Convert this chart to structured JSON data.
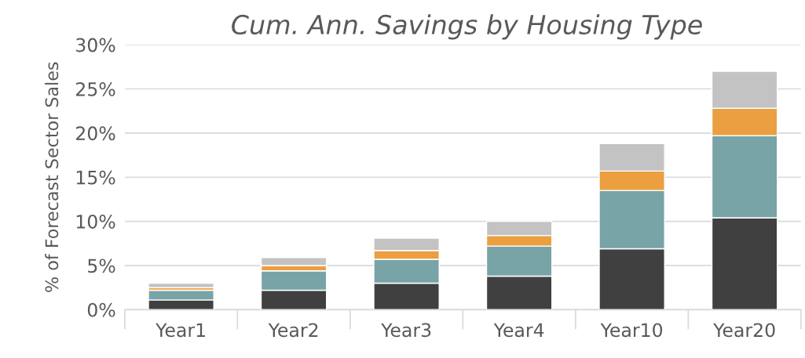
{
  "chart_data": {
    "type": "bar",
    "title": "Cum. Ann. Savings by Housing Type",
    "ylabel": "% of Forecast Sector Sales",
    "categories": [
      "Year1",
      "Year2",
      "Year3",
      "Year4",
      "Year10",
      "Year20"
    ],
    "stacked": true,
    "series": [
      {
        "color": "#404040",
        "values": [
          1.1,
          2.2,
          3.0,
          3.8,
          6.9,
          10.4
        ]
      },
      {
        "color": "#78a3a7",
        "values": [
          1.1,
          2.2,
          2.7,
          3.4,
          6.6,
          9.3
        ]
      },
      {
        "color": "#eb9f40",
        "values": [
          0.3,
          0.6,
          1.0,
          1.2,
          2.2,
          3.1
        ]
      },
      {
        "color": "#c3c3c3",
        "values": [
          0.5,
          0.9,
          1.4,
          1.6,
          3.1,
          4.2
        ]
      }
    ],
    "ylim": [
      0,
      30
    ],
    "yticks": [
      {
        "value": 0,
        "label": "0%"
      },
      {
        "value": 5,
        "label": "5%"
      },
      {
        "value": 10,
        "label": "10%"
      },
      {
        "value": 15,
        "label": "15%"
      },
      {
        "value": 20,
        "label": "20%"
      },
      {
        "value": 25,
        "label": "25%"
      },
      {
        "value": 30,
        "label": "30%"
      }
    ],
    "grid": "y"
  }
}
